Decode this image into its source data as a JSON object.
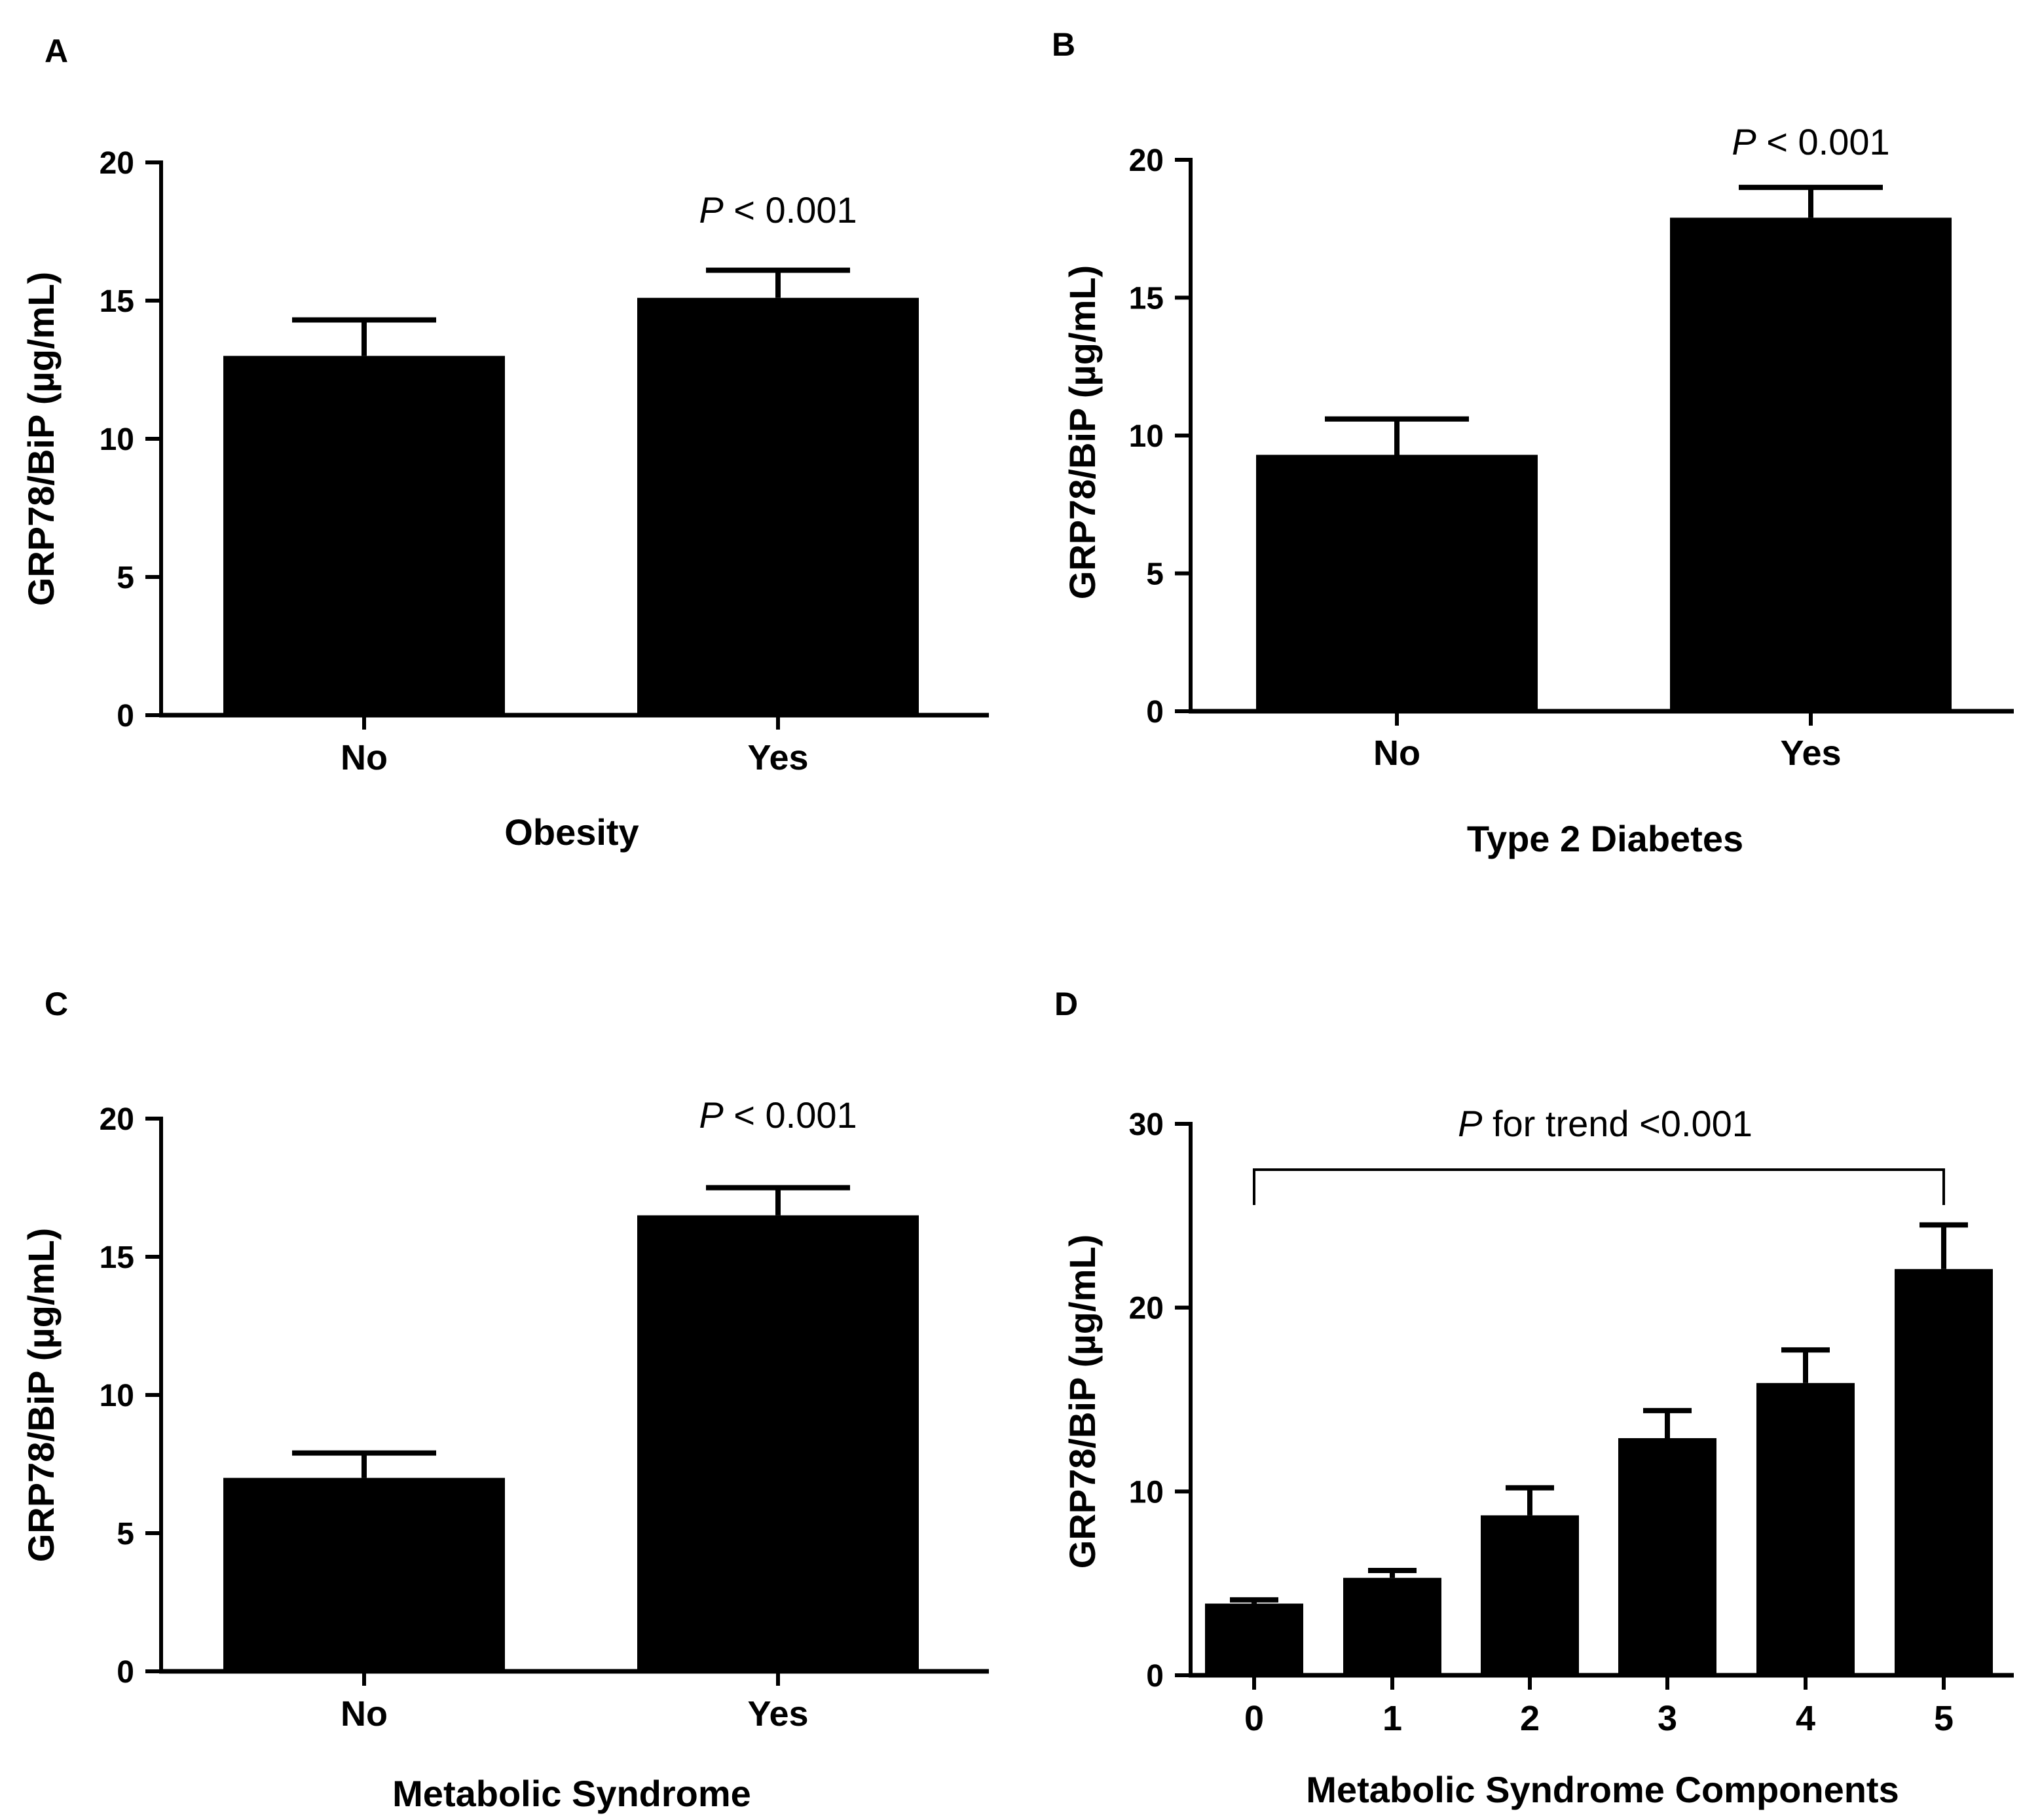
{
  "chart_data": [
    {
      "panel": "A",
      "type": "bar",
      "categories": [
        "No",
        "Yes"
      ],
      "values": [
        13.0,
        15.1
      ],
      "error": [
        1.3,
        1.0
      ],
      "xlabel": "Obesity",
      "ylabel": "GRP78/BiP (µg/mL)",
      "ylim": [
        0,
        20
      ],
      "yticks": [
        "0",
        "5",
        "10",
        "15",
        "20"
      ],
      "annotation": {
        "italic": "P",
        "rest": " < 0.001"
      }
    },
    {
      "panel": "B",
      "type": "bar",
      "categories": [
        "No",
        "Yes"
      ],
      "values": [
        9.3,
        17.9
      ],
      "error": [
        1.3,
        1.1
      ],
      "xlabel": "Type 2 Diabetes",
      "ylabel": "GRP78/BiP (µg/mL)",
      "ylim": [
        0,
        20
      ],
      "yticks": [
        "0",
        "5",
        "10",
        "15",
        "20"
      ],
      "annotation": {
        "italic": "P",
        "rest": " < 0.001"
      }
    },
    {
      "panel": "C",
      "type": "bar",
      "categories": [
        "No",
        "Yes"
      ],
      "values": [
        7.0,
        16.5
      ],
      "error": [
        0.9,
        1.0
      ],
      "xlabel": "Metabolic Syndrome",
      "ylabel": "GRP78/BiP (µg/mL)",
      "ylim": [
        0,
        20
      ],
      "yticks": [
        "0",
        "5",
        "10",
        "15",
        "20"
      ],
      "annotation": {
        "italic": "P",
        "rest": " < 0.001"
      }
    },
    {
      "panel": "D",
      "type": "bar",
      "categories": [
        "0",
        "1",
        "2",
        "3",
        "4",
        "5"
      ],
      "values": [
        3.9,
        5.3,
        8.7,
        12.9,
        15.9,
        22.1
      ],
      "error": [
        0.2,
        0.4,
        1.5,
        1.5,
        1.8,
        2.4
      ],
      "xlabel": "Metabolic Syndrome Components",
      "ylabel": "GRP78/BiP (µg/mL)",
      "ylim": [
        0,
        30
      ],
      "yticks": [
        "0",
        "10",
        "20",
        "30"
      ],
      "annotation": {
        "italic": "P",
        "rest": " for trend <0.001"
      }
    }
  ]
}
